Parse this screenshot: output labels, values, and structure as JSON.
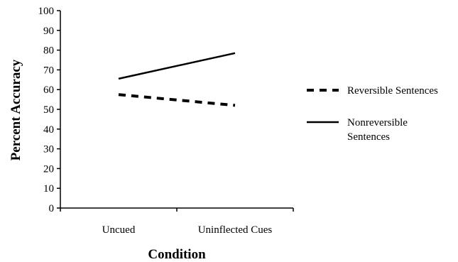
{
  "chart_data": {
    "type": "line",
    "categories": [
      "Uncued",
      "Uninflected Cues"
    ],
    "series": [
      {
        "name": "Reversible Sentences",
        "values": [
          57.5,
          52
        ],
        "style": "dashed",
        "color": "#000000"
      },
      {
        "name": "Nonreversible Sentences",
        "values": [
          65.5,
          78.5
        ],
        "style": "solid",
        "color": "#000000"
      }
    ],
    "title": "",
    "xlabel": "Condition",
    "ylabel": "Percent Accuracy",
    "ylim": [
      0,
      100
    ],
    "yticks": [
      0,
      10,
      20,
      30,
      40,
      50,
      60,
      70,
      80,
      90,
      100
    ],
    "grid": false,
    "legend": {
      "position": "right",
      "entries": [
        {
          "lines": [
            "Reversible Sentences"
          ]
        },
        {
          "lines": [
            "Nonreversible",
            "Sentences"
          ]
        }
      ]
    }
  }
}
